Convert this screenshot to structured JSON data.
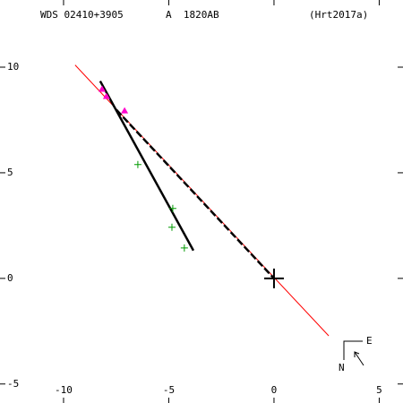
{
  "chart_data": {
    "type": "scatter",
    "header": {
      "left": "WDS 02410+3905",
      "middle": "A  1820AB",
      "right": "(Hrt2017a)"
    },
    "xlim": [
      -13.02,
      6.13
    ],
    "ylim": [
      -5.9,
      13.18
    ],
    "xticks": [
      -10,
      -5,
      0,
      5
    ],
    "yticks": [
      -5,
      0,
      5,
      10
    ],
    "lines": [
      {
        "color": "#ff0000",
        "style": "solid",
        "width": 1,
        "x": [
          -9.45,
          2.6
        ],
        "values": [
          10.1,
          -2.72
        ]
      },
      {
        "color": "#000000",
        "style": "solid",
        "width": 2.5,
        "x": [
          -8.26,
          -3.83
        ],
        "values": [
          9.34,
          1.32
        ]
      },
      {
        "color": "#000000",
        "style": "dashed",
        "width": 2.5,
        "x": [
          -7.49,
          0
        ],
        "values": [
          7.98,
          0
        ]
      }
    ],
    "series": [
      {
        "color": "#ff00cc",
        "marker": "triangle",
        "x": [
          -8.17,
          -7.96,
          -7.1
        ],
        "values": [
          8.96,
          8.62,
          7.94
        ]
      },
      {
        "color": "#009900",
        "marker": "plus",
        "x": [
          -6.47,
          -4.81,
          -4.85,
          -4.26
        ],
        "values": [
          5.39,
          3.31,
          2.42,
          1.44
        ]
      },
      {
        "color": "#000000",
        "marker": "bigplus",
        "x": [
          0
        ],
        "values": [
          0
        ]
      }
    ],
    "compass": {
      "east": "E",
      "north": "N"
    }
  }
}
